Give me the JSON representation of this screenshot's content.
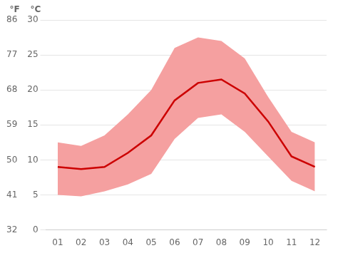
{
  "chart_data": {
    "type": "line",
    "categories": [
      "01",
      "02",
      "03",
      "04",
      "05",
      "06",
      "07",
      "08",
      "09",
      "10",
      "11",
      "12"
    ],
    "series": [
      {
        "type": "band",
        "color": "#f5a0a0",
        "low": [
          5.0,
          4.8,
          5.5,
          6.5,
          8.0,
          13.0,
          16.0,
          16.5,
          14.0,
          10.5,
          7.0,
          5.5
        ],
        "high": [
          12.5,
          12.0,
          13.5,
          16.5,
          20.0,
          26.0,
          27.5,
          27.0,
          24.5,
          19.0,
          14.0,
          12.5
        ]
      },
      {
        "type": "line",
        "color": "#cc0000",
        "values": [
          9.0,
          8.7,
          9.0,
          11.0,
          13.5,
          18.5,
          21.0,
          21.5,
          19.5,
          15.5,
          10.5,
          9.0
        ]
      }
    ],
    "ylim": [
      0,
      30
    ],
    "yticks": [
      0,
      5,
      10,
      15,
      20,
      25,
      30
    ],
    "y2lim": [
      32,
      86
    ],
    "y2ticks": [
      32,
      41,
      50,
      59,
      68,
      77,
      86
    ],
    "y_label": "°C",
    "y2_label": "°F",
    "grid": true
  }
}
